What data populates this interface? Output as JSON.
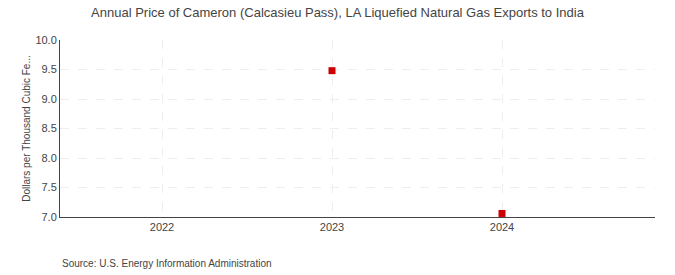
{
  "chart_data": {
    "type": "scatter",
    "title": "Annual Price of Cameron (Calcasieu Pass), LA Liquefied Natural Gas Exports to India",
    "ylabel": "Dollars per Thousand Cubic Fe...",
    "source": "Source: U.S. Energy Information Administration",
    "x": [
      2023,
      2024
    ],
    "values": [
      9.48,
      7.06
    ],
    "color": "#cc0000",
    "marker": "square",
    "xlim": [
      2021.4,
      2024.9
    ],
    "xticks": [
      2022,
      2023,
      2024
    ],
    "ylim": [
      7.0,
      10.0
    ],
    "yticks": [
      {
        "value": 7.0,
        "label": "7.0"
      },
      {
        "value": 7.5,
        "label": "7.5"
      },
      {
        "value": 8.0,
        "label": "8.0"
      },
      {
        "value": 8.5,
        "label": "8.5"
      },
      {
        "value": 9.0,
        "label": "9.0"
      },
      {
        "value": 9.5,
        "label": "9.5"
      },
      {
        "value": 10.0,
        "label": "10.0"
      }
    ],
    "grid": true
  }
}
